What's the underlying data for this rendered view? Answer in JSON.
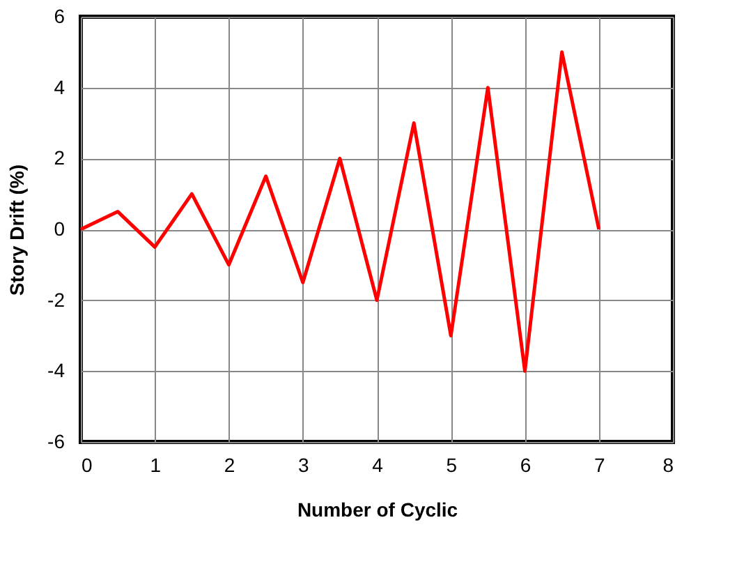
{
  "chart_data": {
    "type": "line",
    "xlabel": "Number of Cyclic",
    "ylabel": "Story Drift (%)",
    "x": [
      0,
      0.5,
      1,
      1.5,
      2,
      2.5,
      3,
      3.5,
      4,
      4.5,
      5,
      5.5,
      6,
      6.5,
      7
    ],
    "series": [
      {
        "color": "#ff0000",
        "values": [
          0,
          0.5,
          -0.5,
          1,
          -1,
          1.5,
          -1.5,
          2,
          -2,
          3,
          -3,
          4,
          -4,
          5,
          0
        ]
      }
    ],
    "xlim": [
      0,
      8
    ],
    "xticks": [
      0,
      1,
      2,
      3,
      4,
      5,
      6,
      7,
      8
    ],
    "ylim": [
      -6,
      6
    ],
    "yticks": [
      -6,
      -4,
      -2,
      0,
      2,
      4,
      6
    ],
    "grid": true,
    "marker": "none",
    "line_style": "solid"
  }
}
